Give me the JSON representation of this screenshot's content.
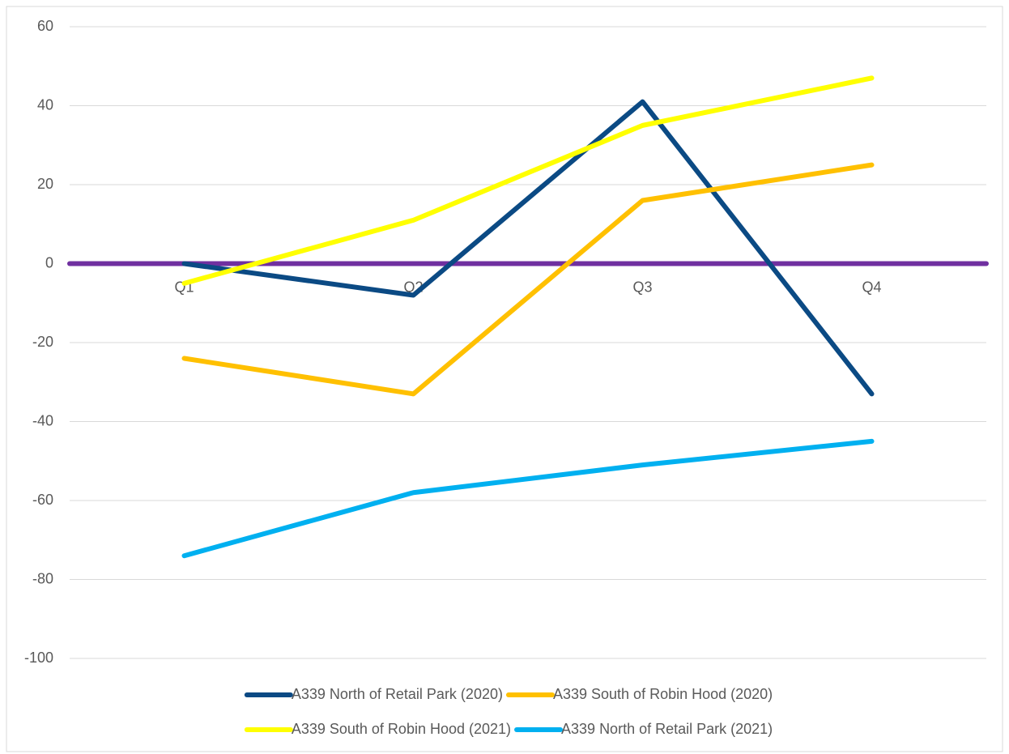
{
  "chart_data": {
    "type": "line",
    "categories": [
      "Q1",
      "Q2",
      "Q3",
      "Q4"
    ],
    "series": [
      {
        "name": "A339 North of Retail Park (2020)",
        "color": "#0b4a84",
        "values": [
          0,
          -8,
          41,
          -33
        ]
      },
      {
        "name": "A339 South of Robin Hood (2020)",
        "color": "#ffc000",
        "values": [
          -24,
          -33,
          16,
          25
        ]
      },
      {
        "name": "A339 South of Robin Hood (2021)",
        "color": "#ffff00",
        "values": [
          -5,
          11,
          35,
          47
        ]
      },
      {
        "name": "A339 North of Retail Park (2021)",
        "color": "#00b0f0",
        "values": [
          -74,
          -58,
          -51,
          -45
        ]
      }
    ],
    "ylim": [
      -100,
      60
    ],
    "yticks": [
      -100,
      -80,
      -60,
      -40,
      -20,
      0,
      20,
      40,
      60
    ],
    "grid": true,
    "x_axis_color": "#7030a0",
    "legend": "bottom"
  }
}
